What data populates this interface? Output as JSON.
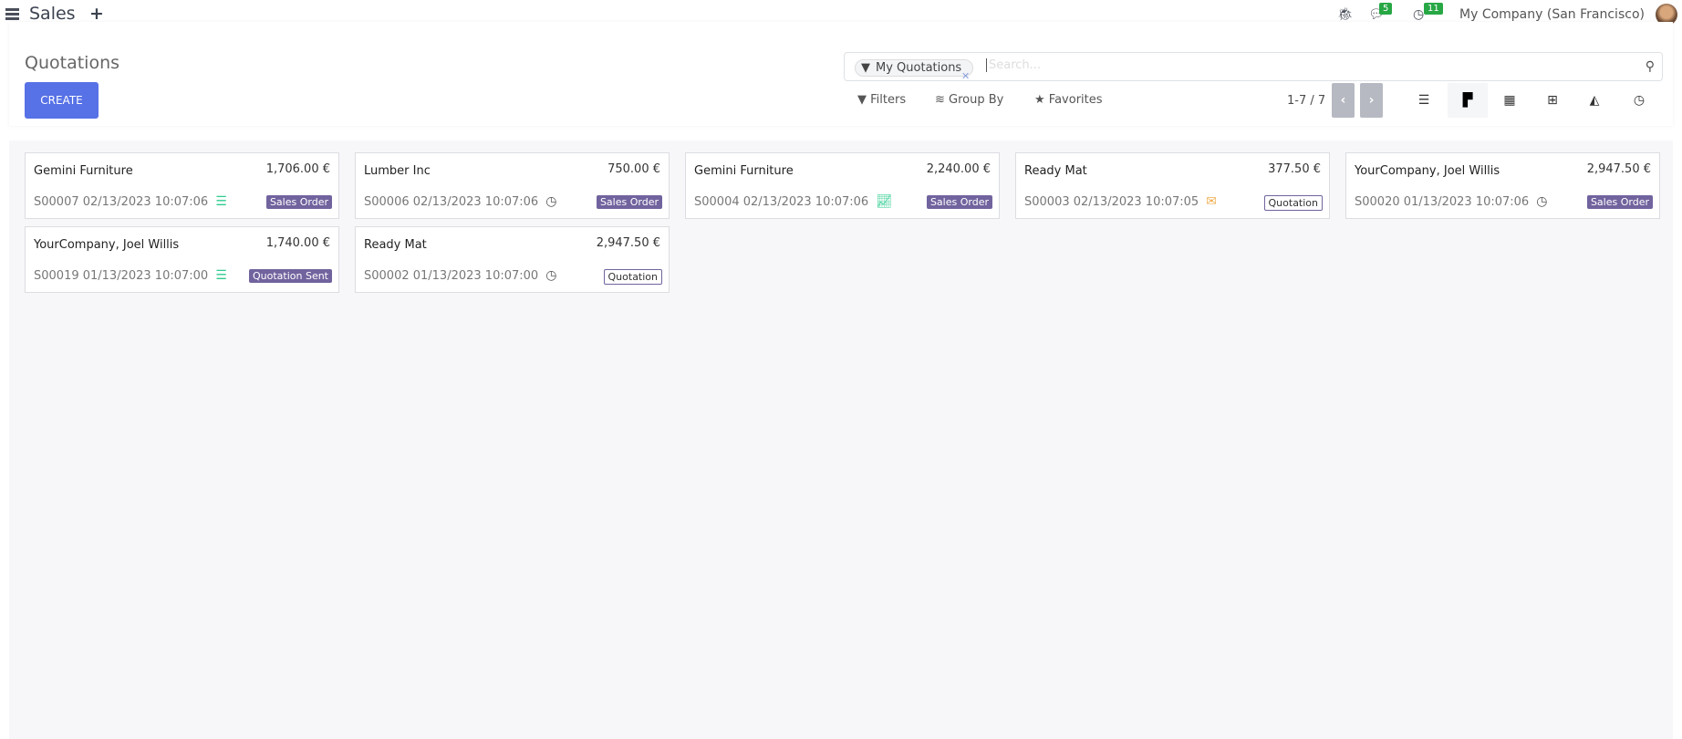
{
  "topbar": {
    "app": "Sales",
    "messages_count": "5",
    "activities_count": "11",
    "company": "My Company (San Francisco)"
  },
  "control": {
    "title": "Quotations",
    "create": "CREATE",
    "facet": "My Quotations",
    "search_placeholder": "Search...",
    "filters": "Filters",
    "group_by": "Group By",
    "favorites": "Favorites",
    "pager": "1-7 / 7"
  },
  "views": [
    "list",
    "kanban",
    "calendar",
    "pivot",
    "graph",
    "activity"
  ],
  "active_view": "kanban",
  "colors": {
    "primary": "#5771e6",
    "tag": "#71639e",
    "activity_green": "#2ecc8f",
    "activity_orange": "#f0ad4e",
    "badge": "#28a745"
  },
  "cards": [
    {
      "name": "Gemini Furniture",
      "amount": "1,706.00 €",
      "ref": "S00007 02/13/2023 10:07:06",
      "activity": "task-icon",
      "status": "Sales Order",
      "style": "filled"
    },
    {
      "name": "Lumber Inc",
      "amount": "750.00 €",
      "ref": "S00006 02/13/2023 10:07:06",
      "activity": "clock-icon",
      "status": "Sales Order",
      "style": "filled"
    },
    {
      "name": "Gemini Furniture",
      "amount": "2,240.00 €",
      "ref": "S00004 02/13/2023 10:07:06",
      "activity": "chart-line-icon",
      "status": "Sales Order",
      "style": "filled"
    },
    {
      "name": "Ready Mat",
      "amount": "377.50 €",
      "ref": "S00003 02/13/2023 10:07:05",
      "activity": "envelope-icon",
      "status": "Quotation",
      "style": "outline"
    },
    {
      "name": "YourCompany, Joel Willis",
      "amount": "2,947.50 €",
      "ref": "S00020 01/13/2023 10:07:06",
      "activity": "clock-icon",
      "status": "Sales Order",
      "style": "filled"
    },
    {
      "name": "YourCompany, Joel Willis",
      "amount": "1,740.00 €",
      "ref": "S00019 01/13/2023 10:07:00",
      "activity": "task-icon",
      "status": "Quotation Sent",
      "style": "filled"
    },
    {
      "name": "Ready Mat",
      "amount": "2,947.50 €",
      "ref": "S00002 01/13/2023 10:07:00",
      "activity": "clock-icon",
      "status": "Quotation",
      "style": "outline"
    }
  ]
}
